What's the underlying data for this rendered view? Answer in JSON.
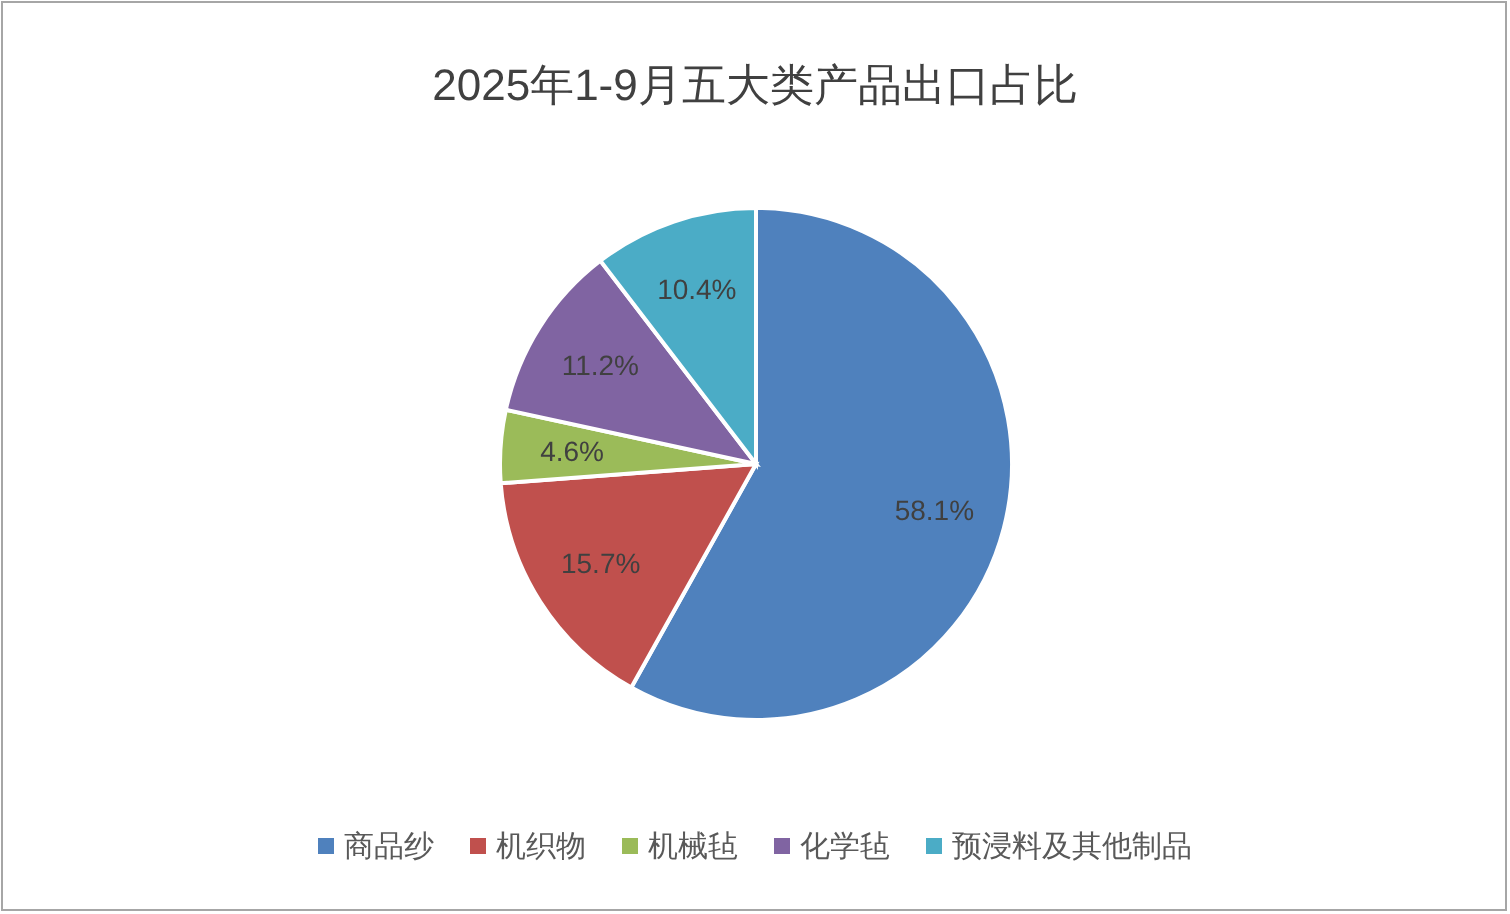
{
  "chart_data": {
    "type": "pie",
    "title": "2025年1-9月五大类产品出口占比",
    "categories": [
      "商品纱",
      "机织物",
      "机械毡",
      "化学毡",
      "预浸料及其他制品"
    ],
    "values": [
      58.1,
      15.7,
      4.6,
      11.2,
      10.4
    ],
    "colors": [
      "#4f81bd",
      "#c0504d",
      "#9bbb59",
      "#8064a2",
      "#4bacc6"
    ],
    "value_labels": [
      "58.1%",
      "15.7%",
      "4.6%",
      "11.2%",
      "10.4%"
    ],
    "legend": "bottom"
  }
}
